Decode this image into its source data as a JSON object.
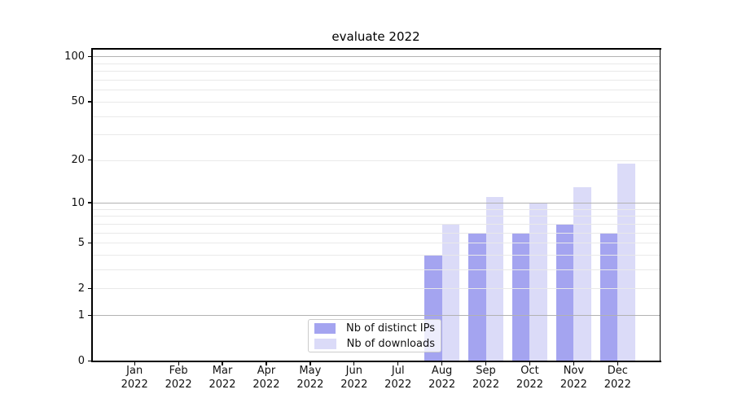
{
  "chart_data": {
    "type": "bar",
    "title": "evaluate 2022",
    "x_year": "2022",
    "categories": [
      "Jan",
      "Feb",
      "Mar",
      "Apr",
      "May",
      "Jun",
      "Jul",
      "Aug",
      "Sep",
      "Oct",
      "Nov",
      "Dec"
    ],
    "series": [
      {
        "name": "Nb of distinct IPs",
        "color": "#a4a4f0",
        "values": [
          0,
          0,
          0,
          0,
          0,
          0,
          0,
          4,
          6,
          6,
          7,
          6
        ]
      },
      {
        "name": "Nb of downloads",
        "color": "#dbdbf8",
        "values": [
          0,
          0,
          0,
          0,
          0,
          0,
          0,
          7,
          11,
          10,
          13,
          19
        ]
      }
    ],
    "y_scale": "log1p",
    "y_ticks": [
      0,
      1,
      2,
      5,
      10,
      20,
      50,
      100
    ],
    "y_major_gridlines": [
      1,
      10,
      100
    ],
    "y_minor_gridlines": [
      2,
      3,
      4,
      5,
      6,
      7,
      8,
      9,
      20,
      30,
      40,
      50,
      60,
      70,
      80,
      90
    ],
    "ylim": [
      0,
      112
    ],
    "grid": true,
    "legend_position": "lower center"
  },
  "colors": {
    "grid_major": "#b2b2b2",
    "grid_minor": "#e9e9e9",
    "spine": "#000000",
    "legend_border": "#cccccc",
    "text": "#111111",
    "background": "#ffffff"
  }
}
